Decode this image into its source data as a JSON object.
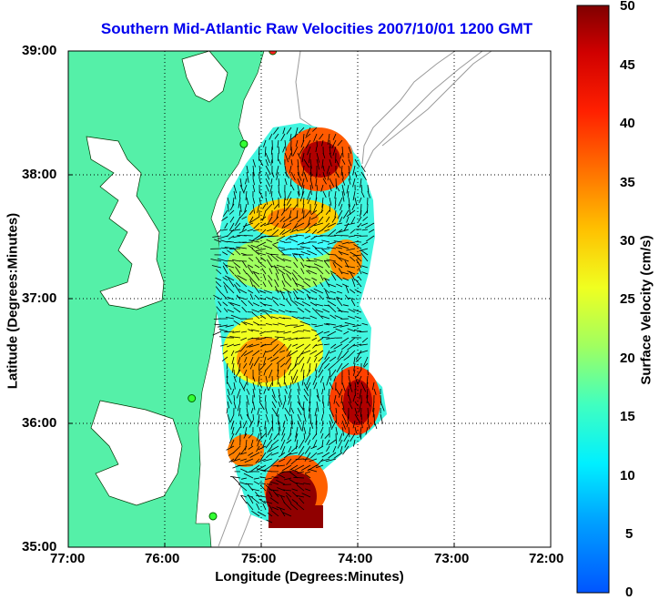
{
  "title": "Southern Mid-Atlantic Raw Velocities 2007/10/01 1200 GMT",
  "x_axis": {
    "label": "Longitude (Degrees:Minutes)",
    "ticks": [
      "77:00",
      "76:00",
      "75:00",
      "74:00",
      "73:00",
      "72:00"
    ]
  },
  "y_axis": {
    "label": "Latitude (Degrees:Minutes)",
    "ticks": [
      "39:00",
      "38:00",
      "37:00",
      "36:00",
      "35:00"
    ]
  },
  "colorbar": {
    "label": "Surface Velocity (cm/s)",
    "min": 0,
    "max": 50,
    "ticks": [
      "50",
      "45",
      "40",
      "35",
      "30",
      "25",
      "20",
      "15",
      "10",
      "5",
      "0"
    ]
  },
  "colors": {
    "title": "#0000ee",
    "land": "#55f0a8",
    "stations": "#33ff33"
  },
  "chart_data": {
    "type": "map",
    "xlim": [
      -77,
      -72
    ],
    "ylim": [
      35,
      39
    ],
    "grid": true,
    "stations": [
      {
        "lon": -74.88,
        "lat": 39.0
      },
      {
        "lon": -75.18,
        "lat": 38.25
      },
      {
        "lon": -75.72,
        "lat": 36.2
      },
      {
        "lon": -75.5,
        "lat": 35.25
      }
    ]
  }
}
